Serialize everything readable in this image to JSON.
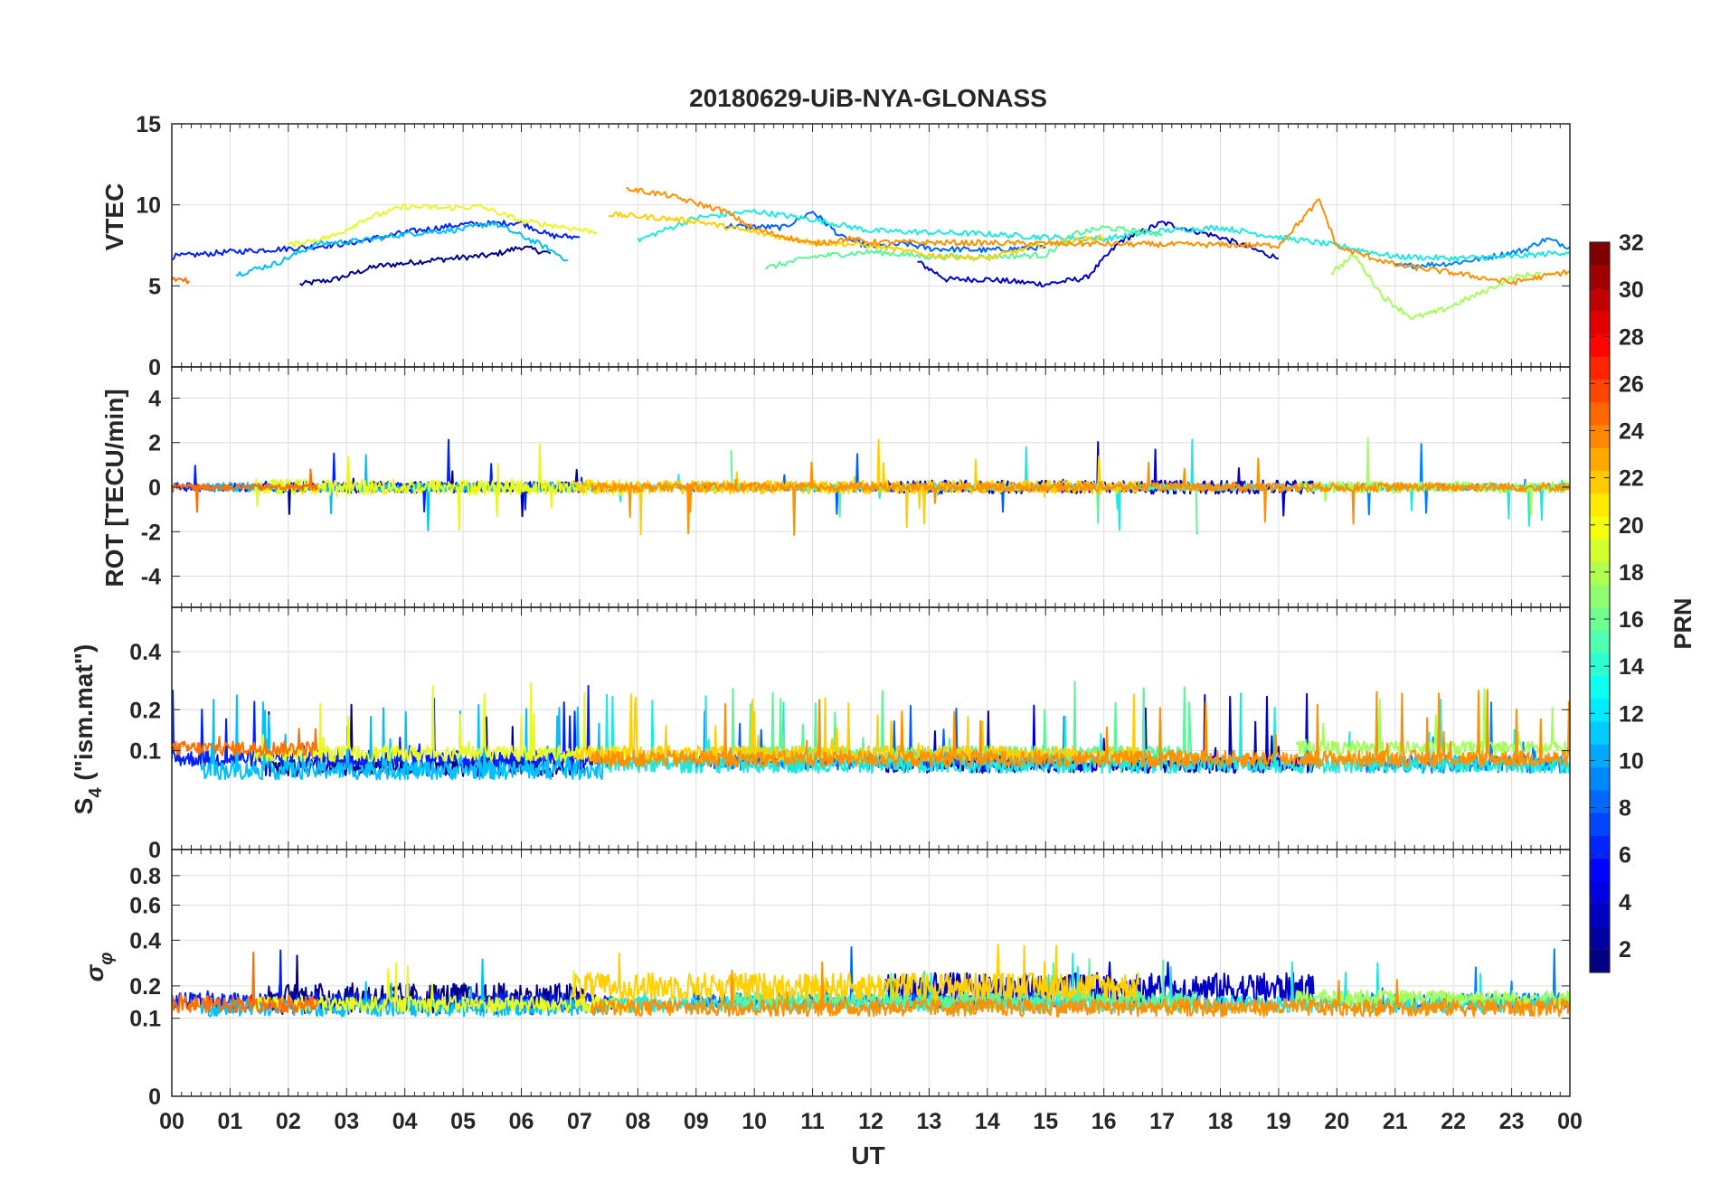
{
  "chart_data": [
    {
      "type": "line",
      "panel": "vtec",
      "title": "20180629-UiB-NYA-GLONASS",
      "ylabel": "VTEC",
      "ylim": [
        0,
        15
      ],
      "yticks": [
        0,
        5,
        10,
        15
      ],
      "ytick_labels": [
        "0",
        "5",
        "10",
        "15"
      ],
      "xlim": [
        0,
        24
      ],
      "grid": true
    },
    {
      "type": "line",
      "panel": "rot",
      "ylabel": "ROT [TECU/min]",
      "ylim": [
        -5.4,
        5.4
      ],
      "yticks": [
        -4,
        -2,
        0,
        2,
        4
      ],
      "ytick_labels": [
        "-4",
        "-2",
        "0",
        "2",
        "4"
      ],
      "xlim": [
        0,
        24
      ],
      "grid": true
    },
    {
      "type": "line",
      "panel": "s4",
      "ylabel_main": "S",
      "ylabel_sub": "4",
      "ylabel_rest": " (\"ism.mat\")",
      "ylim": [
        0,
        0.6
      ],
      "yscale": "sqrt",
      "yticks": [
        0,
        0.1,
        0.2,
        0.4
      ],
      "ytick_labels": [
        "0",
        "0.1",
        "0.2",
        "0.4"
      ],
      "xlim": [
        0,
        24
      ],
      "grid": true
    },
    {
      "type": "line",
      "panel": "sigma",
      "ylabel_main": "σ",
      "ylabel_sub": "φ",
      "ylim": [
        0,
        1
      ],
      "yscale": "sqrt",
      "yticks": [
        0,
        0.1,
        0.2,
        0.4,
        0.6,
        0.8
      ],
      "ytick_labels": [
        "0",
        "0.1",
        "0.2",
        "0.4",
        "0.6",
        "0.8"
      ],
      "xlim": [
        0,
        24
      ],
      "grid": true
    }
  ],
  "xaxis": {
    "label": "UT",
    "ticks": [
      0,
      1,
      2,
      3,
      4,
      5,
      6,
      7,
      8,
      9,
      10,
      11,
      12,
      13,
      14,
      15,
      16,
      17,
      18,
      19,
      20,
      21,
      22,
      23,
      24
    ],
    "tick_labels": [
      "00",
      "01",
      "02",
      "03",
      "04",
      "05",
      "06",
      "07",
      "08",
      "09",
      "10",
      "11",
      "12",
      "13",
      "14",
      "15",
      "16",
      "17",
      "18",
      "19",
      "20",
      "21",
      "22",
      "23",
      "00"
    ]
  },
  "colorbar": {
    "label": "PRN",
    "range": [
      1,
      32
    ],
    "ticks": [
      2,
      4,
      6,
      8,
      10,
      12,
      14,
      16,
      18,
      20,
      22,
      24,
      26,
      28,
      30,
      32
    ],
    "tick_labels": [
      "2",
      "4",
      "6",
      "8",
      "10",
      "12",
      "14",
      "16",
      "18",
      "20",
      "22",
      "24",
      "26",
      "28",
      "30",
      "32"
    ],
    "colormap": "jet"
  },
  "series": [
    {
      "prn": 2,
      "color": "#00008f",
      "vtec": [
        [
          2.2,
          5.1
        ],
        [
          2.8,
          5.4
        ],
        [
          3.5,
          6.2
        ],
        [
          4.5,
          6.6
        ],
        [
          5.5,
          6.9
        ],
        [
          6.0,
          7.4
        ],
        [
          6.5,
          7.0
        ]
      ],
      "rot_amp": 0.5,
      "s4_base": 0.055,
      "sig_base": 0.16,
      "sig_amp": 0.1
    },
    {
      "prn": 3,
      "color": "#0000c8",
      "vtec": [
        [
          12.8,
          6.5
        ],
        [
          13.3,
          5.4
        ],
        [
          14.0,
          5.4
        ],
        [
          15.0,
          5.1
        ],
        [
          15.7,
          5.5
        ],
        [
          16.3,
          7.8
        ],
        [
          17.0,
          8.9
        ],
        [
          18.0,
          8.0
        ],
        [
          19.0,
          6.7
        ]
      ],
      "rot_amp": 0.6,
      "s4_base": 0.06,
      "sig_base": 0.19,
      "sig_amp": 0.12
    },
    {
      "prn": 5,
      "color": "#0020ff",
      "vtec": [
        [
          0.0,
          6.8
        ],
        [
          1.0,
          7.1
        ],
        [
          2.0,
          7.3
        ],
        [
          3.0,
          7.6
        ],
        [
          4.0,
          8.3
        ],
        [
          5.0,
          8.8
        ],
        [
          6.0,
          8.9
        ],
        [
          6.5,
          8.1
        ],
        [
          7.0,
          8.0
        ]
      ],
      "rot_amp": 0.4,
      "s4_base": 0.07,
      "sig_base": 0.15,
      "sig_amp": 0.05
    },
    {
      "prn": 7,
      "color": "#0060ff",
      "vtec": [
        [
          9.5,
          8.7
        ],
        [
          10.5,
          8.6
        ],
        [
          11.0,
          9.6
        ],
        [
          11.5,
          8.0
        ],
        [
          12.0,
          7.4
        ],
        [
          12.6,
          7.6
        ],
        [
          13.0,
          7.3
        ],
        [
          14.0,
          7.2
        ],
        [
          15.0,
          7.4
        ]
      ],
      "rot_amp": 0.4,
      "s4_base": 0.065,
      "sig_base": 0.15,
      "sig_amp": 0.05
    },
    {
      "prn": 8,
      "color": "#0080ff",
      "vtec": [
        [
          21.0,
          6.2
        ],
        [
          22.0,
          6.4
        ],
        [
          22.5,
          6.7
        ],
        [
          23.2,
          7.2
        ],
        [
          23.6,
          7.9
        ],
        [
          24.0,
          7.4
        ]
      ],
      "rot_amp": 0.3,
      "s4_base": 0.06,
      "sig_base": 0.15,
      "sig_amp": 0.05
    },
    {
      "prn": 11,
      "color": "#00c0ff",
      "vtec": [
        [
          1.1,
          5.7
        ],
        [
          1.8,
          6.4
        ],
        [
          2.5,
          7.6
        ],
        [
          3.3,
          7.8
        ],
        [
          4.0,
          8.2
        ],
        [
          5.0,
          8.5
        ],
        [
          5.5,
          8.9
        ],
        [
          6.3,
          7.6
        ],
        [
          6.8,
          6.6
        ]
      ],
      "rot_amp": 0.4,
      "s4_base": 0.05,
      "sig_base": 0.13,
      "sig_amp": 0.05
    },
    {
      "prn": 13,
      "color": "#20e8e0",
      "vtec": [
        [
          8.0,
          7.8
        ],
        [
          9.0,
          9.2
        ],
        [
          10.0,
          9.6
        ],
        [
          11.0,
          9.1
        ],
        [
          12.0,
          8.4
        ],
        [
          13.0,
          8.3
        ],
        [
          14.0,
          8.2
        ],
        [
          15.0,
          8.0
        ],
        [
          16.0,
          7.9
        ],
        [
          17.0,
          8.4
        ],
        [
          18.0,
          8.6
        ],
        [
          19.0,
          8.0
        ],
        [
          20.0,
          7.5
        ],
        [
          21.0,
          6.8
        ],
        [
          22.0,
          6.7
        ],
        [
          23.0,
          6.8
        ],
        [
          24.0,
          7.1
        ]
      ],
      "rot_amp": 0.3,
      "s4_base": 0.06,
      "sig_base": 0.14,
      "sig_amp": 0.05
    },
    {
      "prn": 15,
      "color": "#5cf59c",
      "vtec": [
        [
          10.2,
          6.1
        ],
        [
          11.0,
          6.8
        ],
        [
          12.0,
          7.1
        ],
        [
          13.0,
          6.8
        ],
        [
          14.0,
          6.8
        ],
        [
          15.0,
          6.9
        ],
        [
          15.5,
          8.2
        ],
        [
          16.0,
          8.6
        ],
        [
          17.0,
          8.2
        ]
      ],
      "rot_amp": 0.3,
      "s4_base": 0.08,
      "sig_base": 0.15,
      "sig_amp": 0.06
    },
    {
      "prn": 17,
      "color": "#a4ff58",
      "vtec": [
        [
          19.9,
          5.8
        ],
        [
          20.3,
          6.9
        ],
        [
          20.8,
          4.3
        ],
        [
          21.3,
          3.0
        ],
        [
          21.8,
          3.5
        ],
        [
          22.5,
          4.6
        ],
        [
          23.0,
          5.5
        ],
        [
          23.5,
          5.8
        ]
      ],
      "rot_amp": 0.5,
      "s4_base": 0.09,
      "sig_base": 0.16,
      "sig_amp": 0.05
    },
    {
      "prn": 19,
      "color": "#e8f820",
      "vtec": [
        [
          2.0,
          7.5
        ],
        [
          2.8,
          8.1
        ],
        [
          3.3,
          9.1
        ],
        [
          4.0,
          9.9
        ],
        [
          4.7,
          9.8
        ],
        [
          5.3,
          9.9
        ],
        [
          6.0,
          9.0
        ],
        [
          6.8,
          8.6
        ],
        [
          7.3,
          8.3
        ]
      ],
      "rot_amp": 0.7,
      "s4_base": 0.08,
      "sig_base": 0.14,
      "sig_amp": 0.05
    },
    {
      "prn": 21,
      "color": "#ffd000",
      "vtec": [
        [
          7.5,
          9.4
        ],
        [
          8.0,
          9.3
        ],
        [
          9.0,
          9.0
        ],
        [
          10.0,
          8.3
        ],
        [
          11.0,
          7.7
        ],
        [
          12.0,
          7.5
        ],
        [
          13.0,
          6.9
        ],
        [
          14.0,
          6.7
        ],
        [
          15.0,
          7.6
        ],
        [
          16.0,
          8.0
        ]
      ],
      "rot_amp": 0.6,
      "s4_base": 0.08,
      "sig_base": 0.2,
      "sig_amp": 0.1
    },
    {
      "prn": 23,
      "color": "#ff9000",
      "vtec": [
        [
          7.8,
          11.0
        ],
        [
          8.5,
          10.6
        ],
        [
          9.0,
          10.1
        ],
        [
          9.5,
          9.6
        ],
        [
          10.0,
          8.5
        ],
        [
          11.0,
          7.6
        ],
        [
          11.6,
          7.9
        ],
        [
          12.0,
          7.7
        ],
        [
          19.0,
          7.5
        ],
        [
          19.7,
          10.3
        ],
        [
          20.0,
          7.4
        ],
        [
          21.0,
          6.3
        ],
        [
          22.0,
          5.8
        ],
        [
          23.0,
          5.2
        ],
        [
          24.0,
          5.9
        ]
      ],
      "rot_amp": 0.4,
      "s4_base": 0.07,
      "sig_base": 0.13,
      "sig_amp": 0.05
    },
    {
      "prn": 24,
      "color": "#ff7000",
      "vtec": [
        [
          0.0,
          5.4
        ],
        [
          0.3,
          5.3
        ]
      ],
      "rot_amp": 0.3,
      "s4_base": 0.09,
      "sig_base": 0.14,
      "sig_amp": 0.05
    }
  ]
}
